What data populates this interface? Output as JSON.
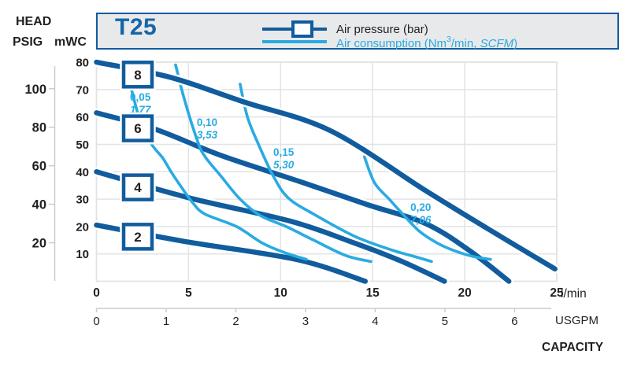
{
  "colors": {
    "dark_blue": "#115c9e",
    "title_blue": "#1566a9",
    "light_blue": "#29abe2",
    "grid_gray": "#e2e3e4",
    "axis_gray": "#cbcccd",
    "text_dark": "#231f20",
    "header_fill": "#e8e9ea"
  },
  "left_axis": {
    "head": "HEAD",
    "psig": "PSIG",
    "mwc": "mWC"
  },
  "bottom_axis": {
    "lmin_unit": "l/min",
    "usgpm_unit": "USGPM",
    "capacity": "CAPACITY"
  },
  "header": {
    "model": "T25",
    "legend": {
      "pressure": {
        "label": "Air pressure (bar)"
      },
      "consumption": {
        "label_prefix": "Air consumption (Nm",
        "sup": "3",
        "label_mid": "/min, ",
        "label_italic": "SCFM",
        "label_suffix": ")"
      }
    }
  },
  "chart_data": {
    "type": "line",
    "title": "T25",
    "grid": true,
    "x_axis": {
      "unit": "l/min",
      "ticks": [
        0,
        5,
        10,
        15,
        20,
        25
      ],
      "range": [
        0,
        25
      ]
    },
    "x_axis_secondary": {
      "unit": "USGPM",
      "ticks": [
        0,
        1,
        2,
        3,
        4,
        5,
        6
      ],
      "lmin_per_usgpm": 3.785
    },
    "y_axis": {
      "unit": "mWC",
      "ticks": [
        10,
        20,
        30,
        40,
        50,
        60,
        70,
        80
      ],
      "range": [
        0,
        80
      ]
    },
    "y_axis_secondary": {
      "unit": "PSIG",
      "ticks": [
        20,
        40,
        60,
        80,
        100
      ],
      "mwc_per_psig": 0.70307
    },
    "series_legend": [
      "Air pressure (bar)",
      "Air consumption (Nm3/min, SCFM)"
    ],
    "pressure_curves": [
      {
        "bar": "2",
        "points_lmin_mwc": [
          [
            0,
            20.5
          ],
          [
            5,
            14.3
          ],
          [
            10.9,
            7.9
          ],
          [
            14.6,
            0
          ]
        ]
      },
      {
        "bar": "4",
        "points_lmin_mwc": [
          [
            0,
            40
          ],
          [
            5,
            30.5
          ],
          [
            10.5,
            22
          ],
          [
            14,
            14
          ],
          [
            16.5,
            7.5
          ],
          [
            18.9,
            0
          ]
        ]
      },
      {
        "bar": "6",
        "points_lmin_mwc": [
          [
            0,
            61.5
          ],
          [
            3.2,
            55.5
          ],
          [
            6.75,
            46
          ],
          [
            11,
            36.5
          ],
          [
            14.7,
            28
          ],
          [
            17.9,
            21
          ],
          [
            20.3,
            11
          ],
          [
            22.4,
            0
          ]
        ]
      },
      {
        "bar": "8",
        "points_lmin_mwc": [
          [
            0,
            80
          ],
          [
            4,
            74.5
          ],
          [
            8,
            65.5
          ],
          [
            12.7,
            55
          ],
          [
            17.9,
            33
          ],
          [
            21.3,
            19
          ],
          [
            24.9,
            4.5
          ]
        ]
      }
    ],
    "consumption_curves": [
      {
        "nm3_min": "0,05",
        "scfm": "1,77",
        "label_at_lmin_mwc": [
          1.82,
          69.4
        ],
        "points_lmin_mwc": [
          [
            1.9,
            70
          ],
          [
            2.4,
            58
          ],
          [
            3.0,
            50
          ],
          [
            3.6,
            45
          ],
          [
            4.05,
            40
          ],
          [
            4.6,
            34.5
          ],
          [
            5.25,
            28.5
          ],
          [
            5.9,
            24.5
          ],
          [
            7.6,
            20
          ],
          [
            9.0,
            14
          ],
          [
            10.2,
            10.5
          ],
          [
            11.4,
            8
          ]
        ]
      },
      {
        "nm3_min": "0,10",
        "scfm": "3,53",
        "label_at_lmin_mwc": [
          5.45,
          60.2
        ],
        "points_lmin_mwc": [
          [
            4.3,
            79
          ],
          [
            4.75,
            67
          ],
          [
            5.5,
            51
          ],
          [
            5.9,
            45.5
          ],
          [
            6.75,
            38.5
          ],
          [
            7.8,
            30
          ],
          [
            8.9,
            24
          ],
          [
            10.3,
            20
          ],
          [
            11.8,
            15
          ],
          [
            13.5,
            9.5
          ],
          [
            14.9,
            7.2
          ]
        ]
      },
      {
        "nm3_min": "0,15",
        "scfm": "5,30",
        "label_at_lmin_mwc": [
          9.6,
          49.3
        ],
        "points_lmin_mwc": [
          [
            7.8,
            72
          ],
          [
            8.2,
            60
          ],
          [
            8.8,
            50
          ],
          [
            9.6,
            38.5
          ],
          [
            10.4,
            30.5
          ],
          [
            11.8,
            24.5
          ],
          [
            14,
            16.5
          ],
          [
            16,
            11.5
          ],
          [
            17.4,
            8.8
          ],
          [
            18.2,
            7.2
          ]
        ]
      },
      {
        "nm3_min": "0,20",
        "scfm": "7,06",
        "label_at_lmin_mwc": [
          17.05,
          29.2
        ],
        "points_lmin_mwc": [
          [
            14.55,
            45.5
          ],
          [
            15.1,
            36
          ],
          [
            15.9,
            30
          ],
          [
            16.5,
            25.5
          ],
          [
            17.5,
            18.5
          ],
          [
            18.5,
            14
          ],
          [
            19.5,
            11
          ],
          [
            20.5,
            9
          ],
          [
            21.4,
            8
          ]
        ]
      }
    ]
  }
}
